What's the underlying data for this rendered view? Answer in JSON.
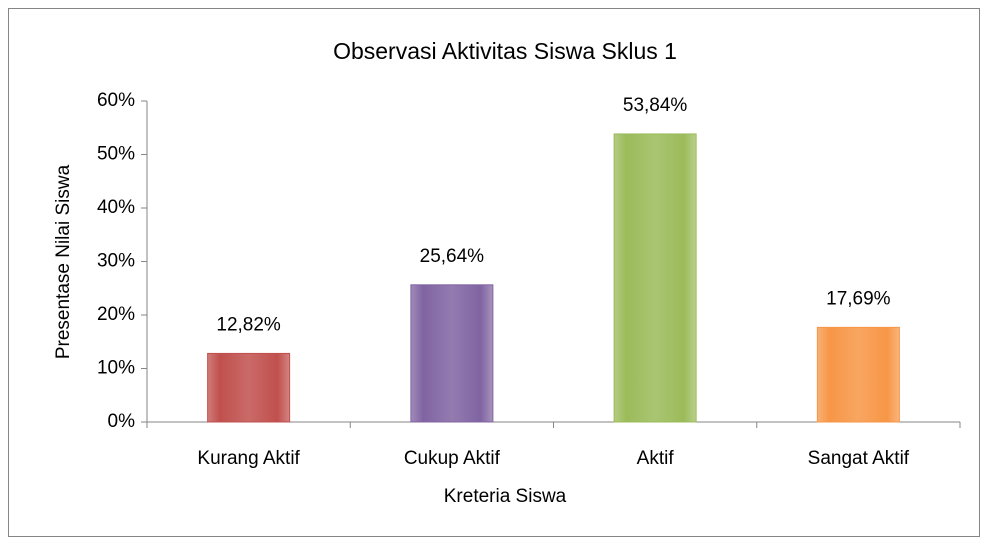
{
  "chart_data": {
    "type": "bar",
    "title": "Observasi Aktivitas Siswa Sklus 1",
    "x_label": "Kreteria Siswa",
    "y_label": "Presentase Nilai Siswa",
    "categories": [
      "Kurang Aktif",
      "Cukup Aktif",
      "Aktif",
      "Sangat Aktif"
    ],
    "values": [
      12.82,
      25.64,
      53.84,
      17.69
    ],
    "value_labels": [
      "12,82%",
      "25,64%",
      "53,84%",
      "17,69%"
    ],
    "colors": [
      "#c0504d",
      "#8064a2",
      "#9bbb59",
      "#f79646"
    ],
    "ylim": [
      0,
      60
    ],
    "yticks": [
      {
        "value": 0,
        "label": "0%"
      },
      {
        "value": 10,
        "label": "10%"
      },
      {
        "value": 20,
        "label": "20%"
      },
      {
        "value": 30,
        "label": "30%"
      },
      {
        "value": 40,
        "label": "40%"
      },
      {
        "value": 50,
        "label": "50%"
      },
      {
        "value": 60,
        "label": "60%"
      }
    ]
  }
}
